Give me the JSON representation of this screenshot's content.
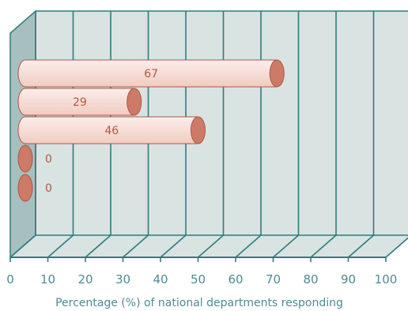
{
  "chart_data": {
    "type": "bar",
    "orientation": "horizontal",
    "style": "3d-cylinder",
    "title": "",
    "xlabel": "Percentage (%) of national departments responding",
    "ylabel": "",
    "xlim": [
      0,
      100
    ],
    "x_ticks": [
      "0",
      "10",
      "20",
      "30",
      "40",
      "50",
      "60",
      "70",
      "80",
      "90",
      "100"
    ],
    "categories": [
      "",
      "",
      "",
      "",
      ""
    ],
    "values": [
      67,
      29,
      46,
      0,
      0
    ],
    "data_labels": [
      "67",
      "29",
      "46",
      "0",
      "0"
    ],
    "grid": true,
    "legend": "none",
    "colors": {
      "floor": "#d9e3e1",
      "wall": "#a8bfbf",
      "grid": "#2e7d7d",
      "bar_light": "#fbeeec",
      "bar_mid": "#f1ccc0",
      "cap": "#cd7a66",
      "cap_stroke": "#a85a47",
      "label": "#b05a44",
      "axis_text": "#4f8a92"
    }
  }
}
